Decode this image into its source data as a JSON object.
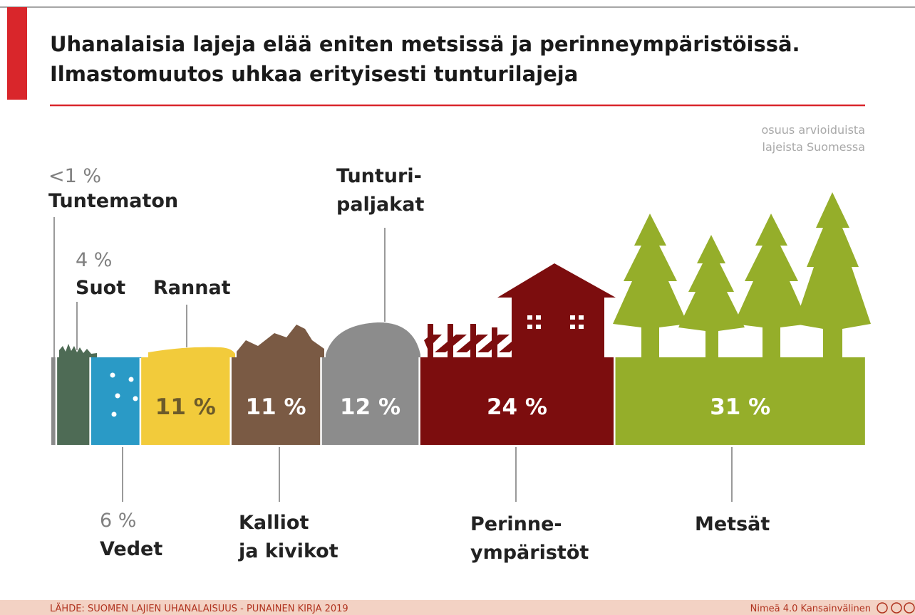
{
  "chart_data": {
    "type": "bar",
    "title": "Uhanalaisia lajeja elää eniten metsissä ja perinneympäristöissä.\nIlmastomuutos uhkaa erityisesti tunturilajeja",
    "note": "osuus arvioiduista\nlajeista Suomessa",
    "categories": [
      "Tuntematon",
      "Suot",
      "Vedet",
      "Rannat",
      "Kalliot\nja kivikot",
      "Tunturi-\npaljakat",
      "Perinne-\nympäristöt",
      "Metsät"
    ],
    "values": [
      0.5,
      4,
      6,
      11,
      11,
      12,
      24,
      31
    ],
    "value_labels": [
      "<1 %",
      "4 %",
      "6 %",
      "11 %",
      "11 %",
      "12 %",
      "24 %",
      "31 %"
    ],
    "colors": [
      "#8a8a8a",
      "#4e6b55",
      "#2a9ac6",
      "#f2cb3b",
      "#7a5a44",
      "#8c8c8c",
      "#7c0d0e",
      "#95ae2a"
    ],
    "source": "LÄHDE: SUOMEN LAJIEN UHANALAISUUS - PUNAINEN KIRJA 2019",
    "license": "Nimeä 4.0 Kansainvälinen"
  }
}
